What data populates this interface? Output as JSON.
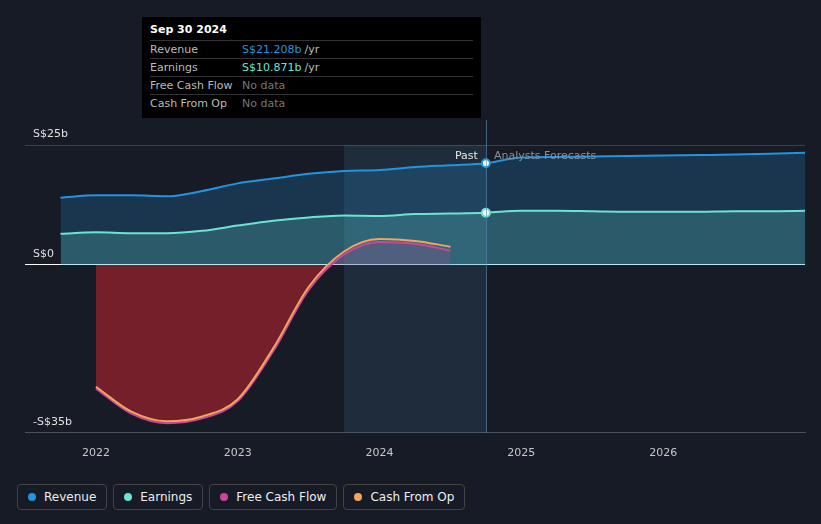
{
  "chart_data": {
    "type": "line",
    "x": [
      2021.75,
      2022,
      2022.25,
      2022.5,
      2022.75,
      2023,
      2023.25,
      2023.5,
      2023.75,
      2024,
      2024.25,
      2024.5,
      2024.75,
      2025,
      2025.25,
      2025.5,
      2025.75,
      2026,
      2026.25,
      2026.5,
      2026.75,
      2027
    ],
    "series": [
      {
        "name": "Revenue",
        "color": "#2394df",
        "type": "area",
        "values": [
          14.0,
          14.5,
          14.5,
          14.3,
          15.4,
          17.0,
          18.0,
          19.0,
          19.6,
          19.8,
          20.4,
          20.8,
          21.208,
          22.4,
          22.5,
          22.6,
          22.7,
          22.8,
          22.9,
          23.0,
          23.2,
          23.4
        ]
      },
      {
        "name": "Earnings",
        "color": "#6de3d3",
        "type": "area",
        "values": [
          6.5,
          6.8,
          6.6,
          6.6,
          7.1,
          8.2,
          9.2,
          9.9,
          10.3,
          10.2,
          10.6,
          10.7,
          10.871,
          11.3,
          11.3,
          11.2,
          11.1,
          11.1,
          11.1,
          11.2,
          11.2,
          11.3
        ]
      },
      {
        "name": "Free Cash Flow",
        "color": "#c9479b",
        "type": "area",
        "values": [
          null,
          -25.8,
          -31.0,
          -33.0,
          -32.0,
          -28.4,
          -18.0,
          -5.2,
          2.2,
          4.8,
          4.4,
          3.0,
          null,
          null,
          null,
          null,
          null,
          null,
          null,
          null,
          null,
          null
        ]
      },
      {
        "name": "Cash From Op",
        "color": "#f2a65a",
        "type": "line",
        "values": [
          null,
          -25.4,
          -30.6,
          -32.6,
          -31.6,
          -28.0,
          -17.4,
          -4.6,
          2.8,
          5.4,
          5.0,
          3.8,
          null,
          null,
          null,
          null,
          null,
          null,
          null,
          null,
          null,
          null
        ]
      }
    ],
    "xlim": [
      2021.5,
      2027.0
    ],
    "xticks": [
      2022,
      2023,
      2024,
      2025,
      2026
    ],
    "ylim": [
      -35,
      25
    ],
    "yticks": [
      {
        "value": -35,
        "label": "-S$35b"
      },
      {
        "value": 0,
        "label": "S$0"
      },
      {
        "value": 25,
        "label": "S$25b"
      }
    ],
    "grid": true,
    "legend": "lower left",
    "shaded_range": [
      2023.75,
      2024.75
    ],
    "annotations": [
      {
        "x": 2024.75,
        "label": "Past",
        "side": "left"
      },
      {
        "x": 2024.75,
        "label": "Analysts Forecasts",
        "side": "right"
      }
    ],
    "tooltip": {
      "title": "Sep 30 2024",
      "rows": [
        {
          "label": "Revenue",
          "value": "S$21.208b",
          "unit": "/yr"
        },
        {
          "label": "Earnings",
          "value": "S$10.871b",
          "unit": "/yr"
        },
        {
          "label": "Free Cash Flow",
          "value": "No data"
        },
        {
          "label": "Cash From Op",
          "value": "No data"
        }
      ]
    }
  }
}
